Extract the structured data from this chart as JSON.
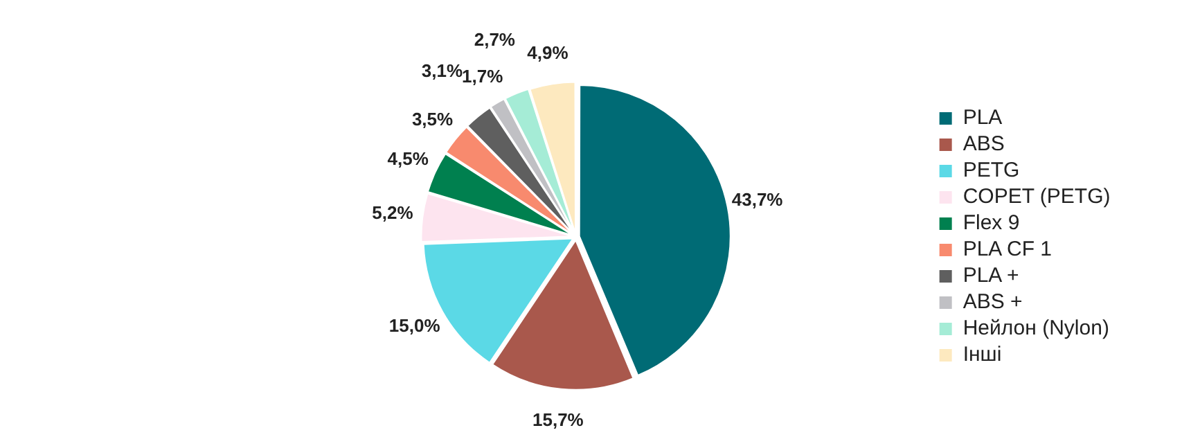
{
  "chart_data": {
    "type": "pie",
    "categories": [
      "PLA",
      "ABS",
      "PETG",
      "COPET (PETG)",
      "Flex 9",
      "PLA CF 1",
      "PLA +",
      "ABS +",
      "Нейлон (Nylon)",
      "Інші"
    ],
    "values": [
      43.7,
      15.7,
      15.0,
      5.2,
      4.5,
      3.5,
      3.1,
      1.7,
      2.7,
      4.9
    ],
    "value_labels": [
      "43,7%",
      "15,7%",
      "15,0%",
      "5,2%",
      "4,5%",
      "3,5%",
      "3,1%",
      "1,7%",
      "2,7%",
      "4,9%"
    ],
    "colors": [
      "#006b75",
      "#a9584c",
      "#5bd9e6",
      "#fde4ef",
      "#00804f",
      "#f88a6e",
      "#5f5f5f",
      "#c0c0c4",
      "#a5ecd6",
      "#fde9bf"
    ],
    "legend": "right"
  }
}
